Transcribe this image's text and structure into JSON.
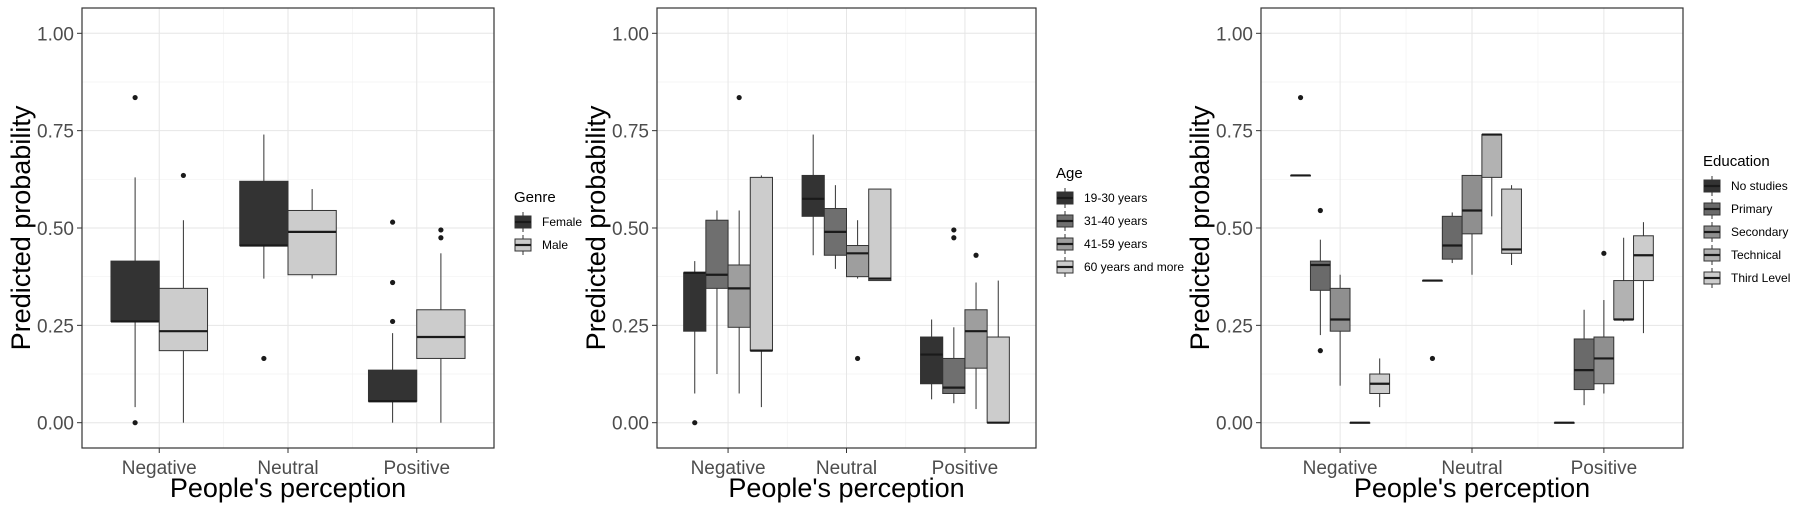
{
  "colors": {
    "Female": "#333333",
    "Male": "#cccccc",
    "19-30 years": "#333333",
    "31-40 years": "#6f6f6f",
    "41-59 years": "#9e9e9e",
    "60 years and more": "#cccccc",
    "No studies": "#333333",
    "Primary": "#6a6a6a",
    "Secondary": "#8f8f8f",
    "Technical": "#b2b2b2",
    "Third Level": "#cccccc"
  },
  "chart_data": [
    {
      "type": "box",
      "xlabel": "People's perception",
      "ylabel": "Predicted probability",
      "categories": [
        "Negative",
        "Neutral",
        "Positive"
      ],
      "ylim": [
        0,
        1
      ],
      "yticks": [
        "0.00",
        "0.25",
        "0.50",
        "0.75",
        "1.00"
      ],
      "grid": true,
      "legend": {
        "title": "Genre",
        "position": "right"
      },
      "series": [
        {
          "name": "Female",
          "boxes": [
            {
              "category": "Negative",
              "lower": 0.04,
              "q1": 0.26,
              "median": 0.26,
              "q3": 0.415,
              "upper": 0.63,
              "outliers": [
                0.0,
                0.835
              ]
            },
            {
              "category": "Neutral",
              "lower": 0.37,
              "q1": 0.455,
              "median": 0.455,
              "q3": 0.62,
              "upper": 0.74,
              "outliers": [
                0.165
              ]
            },
            {
              "category": "Positive",
              "lower": 0.0,
              "q1": 0.055,
              "median": 0.055,
              "q3": 0.135,
              "upper": 0.23,
              "outliers": [
                0.26,
                0.36,
                0.515
              ]
            }
          ]
        },
        {
          "name": "Male",
          "boxes": [
            {
              "category": "Negative",
              "lower": 0.0,
              "q1": 0.185,
              "median": 0.235,
              "q3": 0.345,
              "upper": 0.52,
              "outliers": [
                0.635
              ]
            },
            {
              "category": "Neutral",
              "lower": 0.37,
              "q1": 0.38,
              "median": 0.49,
              "q3": 0.545,
              "upper": 0.6,
              "outliers": []
            },
            {
              "category": "Positive",
              "lower": 0.0,
              "q1": 0.165,
              "median": 0.22,
              "q3": 0.29,
              "upper": 0.435,
              "outliers": [
                0.475,
                0.495
              ]
            }
          ]
        }
      ]
    },
    {
      "type": "box",
      "xlabel": "People's perception",
      "ylabel": "Predicted probability",
      "categories": [
        "Negative",
        "Neutral",
        "Positive"
      ],
      "ylim": [
        0,
        1
      ],
      "yticks": [
        "0.00",
        "0.25",
        "0.50",
        "0.75",
        "1.00"
      ],
      "grid": true,
      "legend": {
        "title": "Age",
        "position": "right"
      },
      "series": [
        {
          "name": "19-30 years",
          "boxes": [
            {
              "category": "Negative",
              "lower": 0.075,
              "q1": 0.235,
              "median": 0.385,
              "q3": 0.385,
              "upper": 0.415,
              "outliers": [
                0.0
              ]
            },
            {
              "category": "Neutral",
              "lower": 0.43,
              "q1": 0.53,
              "median": 0.575,
              "q3": 0.635,
              "upper": 0.74,
              "outliers": []
            },
            {
              "category": "Positive",
              "lower": 0.06,
              "q1": 0.1,
              "median": 0.175,
              "q3": 0.22,
              "upper": 0.265,
              "outliers": []
            }
          ]
        },
        {
          "name": "31-40 years",
          "boxes": [
            {
              "category": "Negative",
              "lower": 0.125,
              "q1": 0.345,
              "median": 0.38,
              "q3": 0.52,
              "upper": 0.545,
              "outliers": []
            },
            {
              "category": "Neutral",
              "lower": 0.395,
              "q1": 0.43,
              "median": 0.49,
              "q3": 0.55,
              "upper": 0.61,
              "outliers": []
            },
            {
              "category": "Positive",
              "lower": 0.05,
              "q1": 0.075,
              "median": 0.09,
              "q3": 0.165,
              "upper": 0.245,
              "outliers": [
                0.475,
                0.495
              ]
            }
          ]
        },
        {
          "name": "41-59 years",
          "boxes": [
            {
              "category": "Negative",
              "lower": 0.075,
              "q1": 0.245,
              "median": 0.345,
              "q3": 0.405,
              "upper": 0.545,
              "outliers": [
                0.835
              ]
            },
            {
              "category": "Neutral",
              "lower": 0.37,
              "q1": 0.375,
              "median": 0.435,
              "q3": 0.455,
              "upper": 0.52,
              "outliers": [
                0.165
              ]
            },
            {
              "category": "Positive",
              "lower": 0.035,
              "q1": 0.14,
              "median": 0.235,
              "q3": 0.29,
              "upper": 0.36,
              "outliers": [
                0.43
              ]
            }
          ]
        },
        {
          "name": "60 years and more",
          "boxes": [
            {
              "category": "Negative",
              "lower": 0.04,
              "q1": 0.185,
              "median": 0.185,
              "q3": 0.63,
              "upper": 0.635,
              "outliers": []
            },
            {
              "category": "Neutral",
              "lower": 0.365,
              "q1": 0.365,
              "median": 0.37,
              "q3": 0.6,
              "upper": 0.6,
              "outliers": []
            },
            {
              "category": "Positive",
              "lower": 0.0,
              "q1": 0.0,
              "median": 0.0,
              "q3": 0.22,
              "upper": 0.365,
              "outliers": []
            }
          ]
        }
      ]
    },
    {
      "type": "box",
      "xlabel": "People's perception",
      "ylabel": "Predicted probability",
      "categories": [
        "Negative",
        "Neutral",
        "Positive"
      ],
      "ylim": [
        0,
        1
      ],
      "yticks": [
        "0.00",
        "0.25",
        "0.50",
        "0.75",
        "1.00"
      ],
      "grid": true,
      "legend": {
        "title": "Education",
        "position": "right"
      },
      "series": [
        {
          "name": "No studies",
          "boxes": [
            {
              "category": "Negative",
              "lower": 0.635,
              "q1": 0.635,
              "median": 0.635,
              "q3": 0.635,
              "upper": 0.635,
              "outliers": [
                0.835
              ]
            },
            {
              "category": "Neutral",
              "lower": 0.365,
              "q1": 0.365,
              "median": 0.365,
              "q3": 0.365,
              "upper": 0.365,
              "outliers": [
                0.165
              ]
            },
            {
              "category": "Positive",
              "lower": 0.0,
              "q1": 0.0,
              "median": 0.0,
              "q3": 0.0,
              "upper": 0.0,
              "outliers": []
            }
          ]
        },
        {
          "name": "Primary",
          "boxes": [
            {
              "category": "Negative",
              "lower": 0.225,
              "q1": 0.34,
              "median": 0.405,
              "q3": 0.415,
              "upper": 0.47,
              "outliers": [
                0.185,
                0.545
              ]
            },
            {
              "category": "Neutral",
              "lower": 0.41,
              "q1": 0.42,
              "median": 0.455,
              "q3": 0.53,
              "upper": 0.54,
              "outliers": []
            },
            {
              "category": "Positive",
              "lower": 0.045,
              "q1": 0.085,
              "median": 0.135,
              "q3": 0.215,
              "upper": 0.29,
              "outliers": []
            }
          ]
        },
        {
          "name": "Secondary",
          "boxes": [
            {
              "category": "Negative",
              "lower": 0.095,
              "q1": 0.235,
              "median": 0.265,
              "q3": 0.345,
              "upper": 0.38,
              "outliers": []
            },
            {
              "category": "Neutral",
              "lower": 0.38,
              "q1": 0.485,
              "median": 0.545,
              "q3": 0.635,
              "upper": 0.635,
              "outliers": []
            },
            {
              "category": "Positive",
              "lower": 0.075,
              "q1": 0.1,
              "median": 0.165,
              "q3": 0.22,
              "upper": 0.315,
              "outliers": [
                0.435
              ]
            }
          ]
        },
        {
          "name": "Technical",
          "boxes": [
            {
              "category": "Negative",
              "lower": 0.0,
              "q1": 0.0,
              "median": 0.0,
              "q3": 0.0,
              "upper": 0.0,
              "outliers": []
            },
            {
              "category": "Neutral",
              "lower": 0.53,
              "q1": 0.63,
              "median": 0.74,
              "q3": 0.74,
              "upper": 0.74,
              "outliers": []
            },
            {
              "category": "Positive",
              "lower": 0.26,
              "q1": 0.265,
              "median": 0.265,
              "q3": 0.365,
              "upper": 0.475,
              "outliers": []
            }
          ]
        },
        {
          "name": "Third Level",
          "boxes": [
            {
              "category": "Negative",
              "lower": 0.04,
              "q1": 0.075,
              "median": 0.1,
              "q3": 0.125,
              "upper": 0.165,
              "outliers": []
            },
            {
              "category": "Neutral",
              "lower": 0.405,
              "q1": 0.435,
              "median": 0.445,
              "q3": 0.6,
              "upper": 0.61,
              "outliers": []
            },
            {
              "category": "Positive",
              "lower": 0.23,
              "q1": 0.365,
              "median": 0.43,
              "q3": 0.48,
              "upper": 0.515,
              "outliers": []
            }
          ]
        }
      ]
    }
  ]
}
